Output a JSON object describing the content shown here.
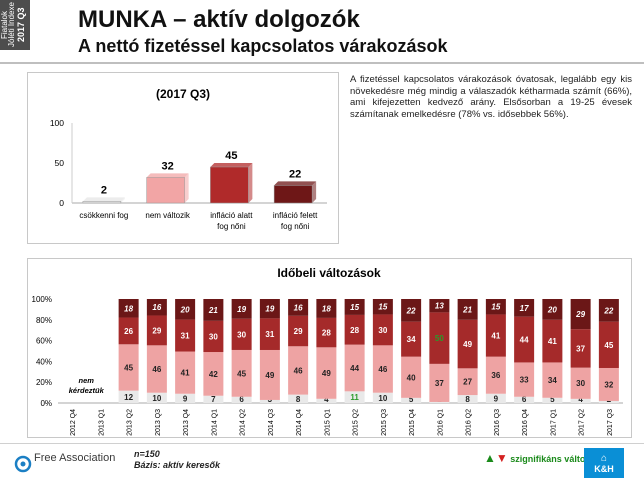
{
  "side_tab": {
    "line1": "Fiatalok Jóléti Indexe",
    "line2": "2017 Q3"
  },
  "header": {
    "title": "MUNKA – aktív dolgozók",
    "subtitle": "A nettó fizetéssel kapcsolatos várakozások"
  },
  "description": "A fizetéssel kapcsolatos várakozások óvatosak, legalább egy kis növekedésre még mindig a válaszadók kétharmada számít (66%), ami kifejezetten kedvező arány. Elsősorban a 19-25 évesek számítanak emelkedésre (78% vs. idősebbek 56%).",
  "footer": {
    "n": "n=150",
    "base": "Bázis: aktív keresők",
    "significance": "szignifikáns változás",
    "logo_left": "Free Association",
    "logo_right_top": "K&H"
  },
  "chart_data": [
    {
      "type": "bar",
      "title": "(2017 Q3)",
      "categories": [
        "csökkenni fog",
        "nem változik",
        "infláció alatt fog nőni",
        "infláció felett fog nőni"
      ],
      "values": [
        2,
        32,
        45,
        22
      ],
      "ylim": [
        0,
        100
      ],
      "yticks": [
        0,
        50,
        100
      ],
      "colors": [
        "#e6e6e6",
        "#f2a5a5",
        "#b02a2a",
        "#6e1717"
      ]
    },
    {
      "type": "bar",
      "stacked": true,
      "title": "Időbeli változások",
      "categories": [
        "2012 Q4",
        "2013 Q1",
        "2013 Q2",
        "2013 Q3",
        "2013 Q4",
        "2014 Q1",
        "2014 Q2",
        "2014 Q3",
        "2014 Q4",
        "2015 Q1",
        "2015 Q2",
        "2015 Q3",
        "2015 Q4",
        "2016 Q1",
        "2016 Q2",
        "2016 Q3",
        "2016 Q4",
        "2017 Q1",
        "2017 Q2",
        "2017 Q3"
      ],
      "yticks": [
        "0%",
        "20%",
        "40%",
        "60%",
        "80%",
        "100%"
      ],
      "no_data_label": "nem kérdeztük",
      "series": [
        {
          "values": [
            null,
            null,
            12,
            10,
            9,
            7,
            6,
            3,
            8,
            4,
            11,
            10,
            5,
            1,
            8,
            9,
            6,
            5,
            4,
            2
          ],
          "color": "#e9e9e9"
        },
        {
          "values": [
            null,
            null,
            45,
            46,
            41,
            42,
            45,
            49,
            46,
            49,
            44,
            46,
            40,
            37,
            27,
            36,
            33,
            34,
            30,
            32
          ],
          "color": "#eea3a3"
        },
        {
          "values": [
            null,
            null,
            26,
            29,
            31,
            30,
            30,
            31,
            29,
            28,
            28,
            30,
            34,
            50,
            49,
            41,
            44,
            41,
            37,
            45
          ],
          "color": "#a52a2a"
        },
        {
          "values": [
            null,
            null,
            18,
            16,
            20,
            21,
            19,
            19,
            16,
            18,
            15,
            15,
            22,
            13,
            21,
            15,
            17,
            20,
            29,
            22
          ],
          "color": "#6b1717"
        }
      ],
      "highlight_value_color": "#2a9b2a",
      "highlights": [
        [
          0,
          10
        ],
        [
          2,
          13
        ]
      ]
    }
  ]
}
